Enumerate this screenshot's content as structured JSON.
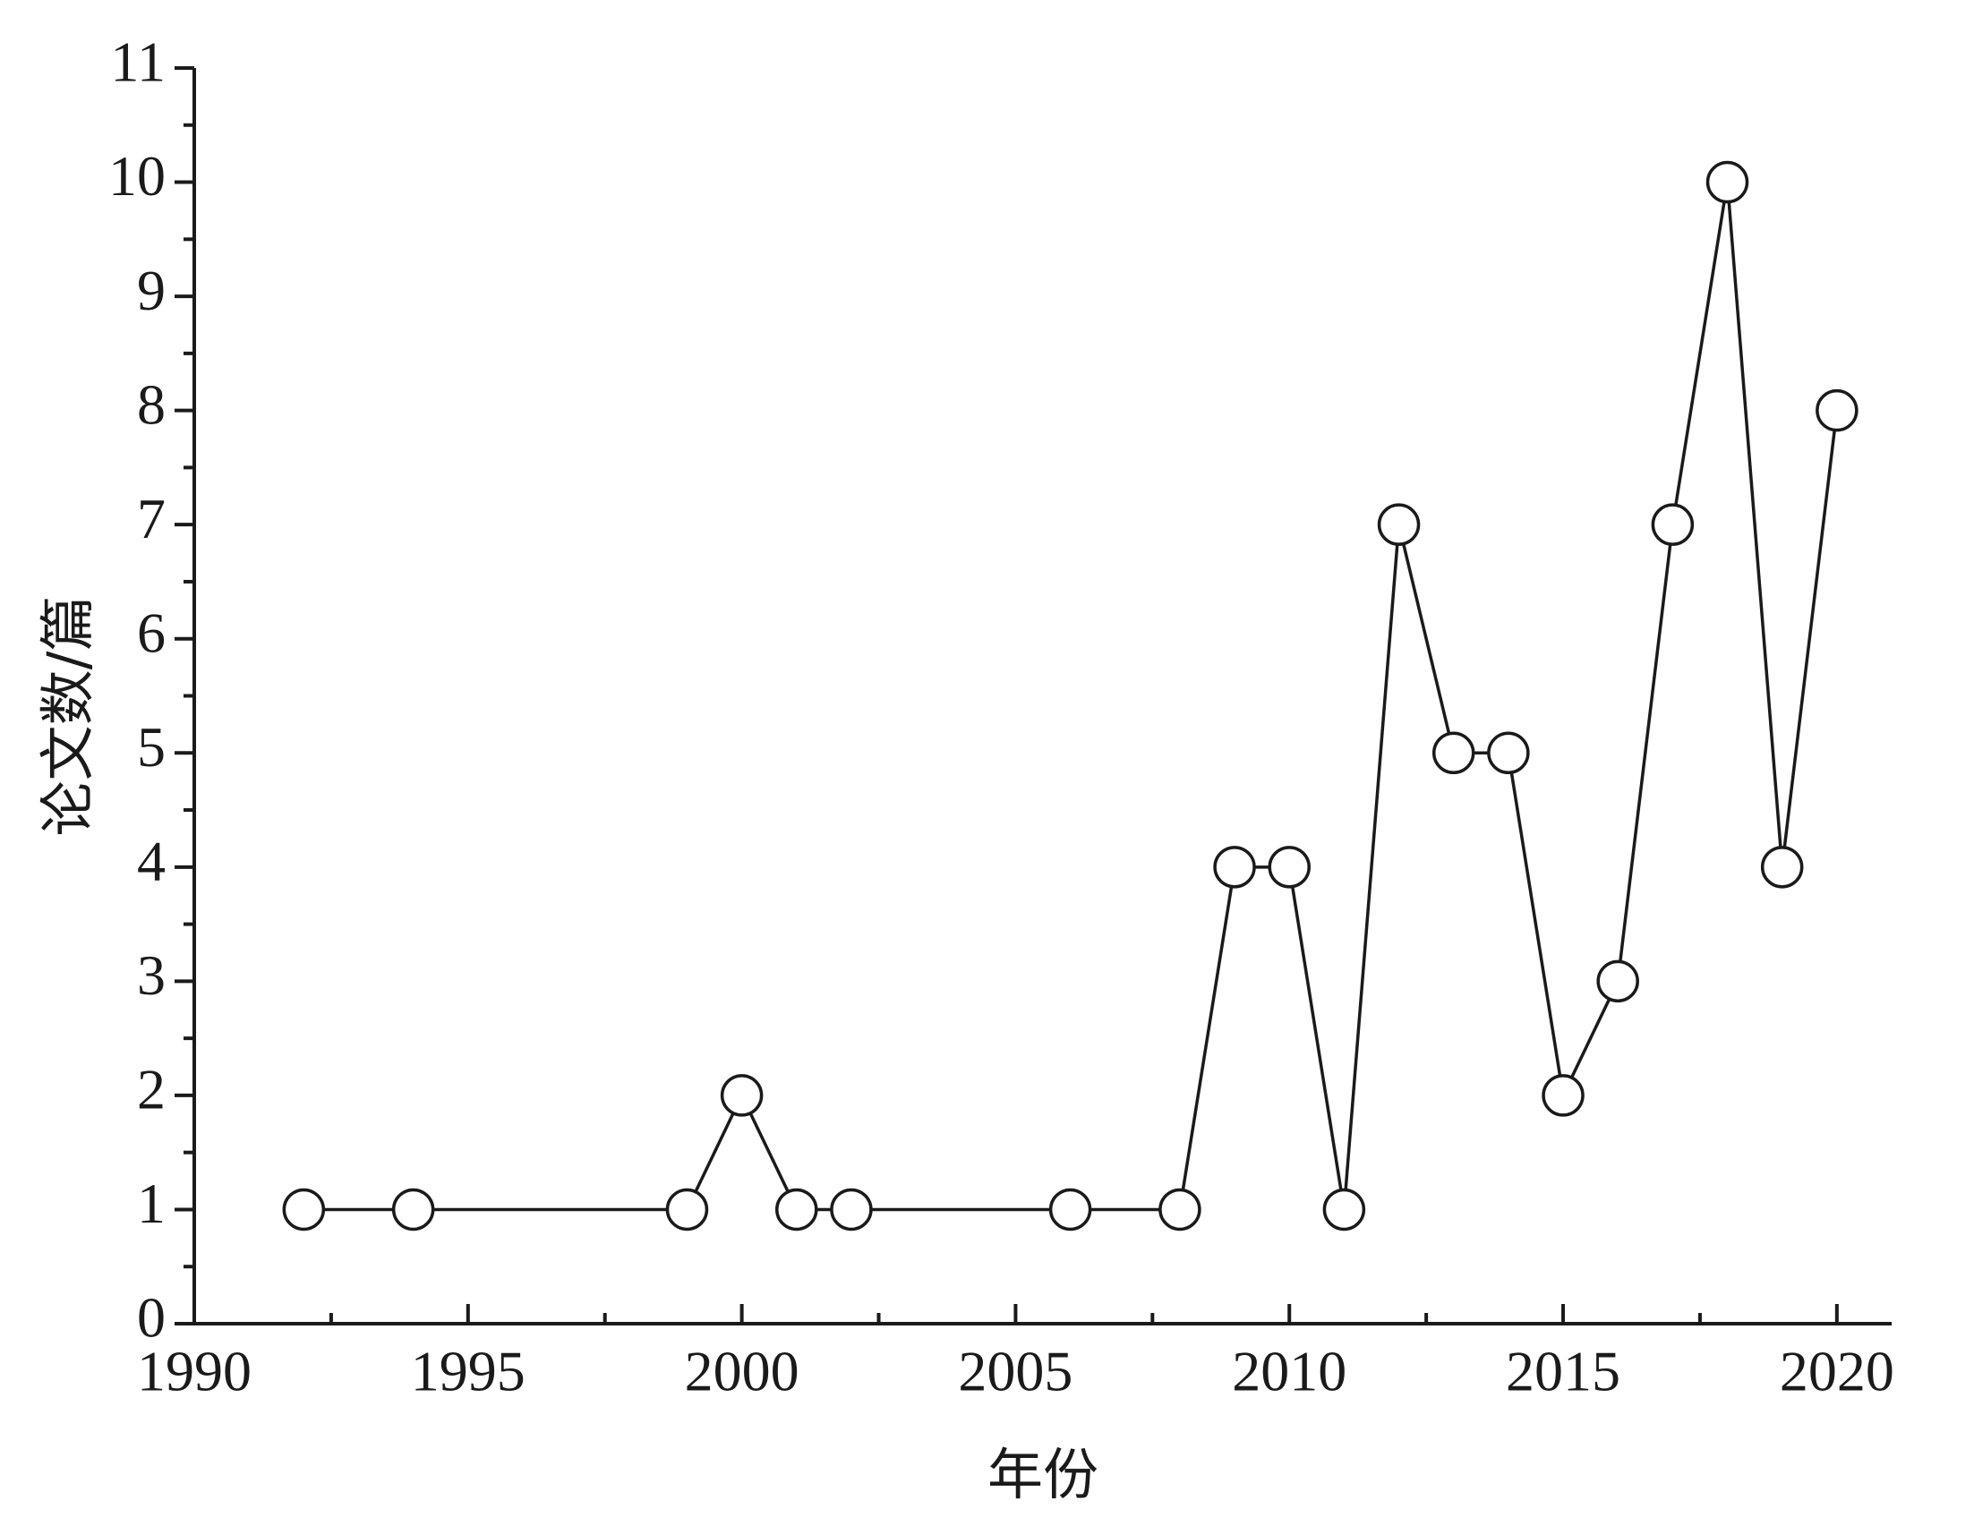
{
  "chart_data": {
    "type": "line",
    "x_label": "年份",
    "y_label": "论文数/篇",
    "x": [
      1992,
      1994,
      1999,
      2000,
      2001,
      2002,
      2006,
      2008,
      2009,
      2010,
      2011,
      2012,
      2013,
      2014,
      2015,
      2016,
      2017,
      2018,
      2019,
      2020
    ],
    "values": [
      1,
      1,
      1,
      2,
      1,
      1,
      1,
      1,
      4,
      4,
      1,
      7,
      5,
      5,
      2,
      3,
      7,
      10,
      4,
      8
    ],
    "color": "#1a1a1a",
    "marker": "open-circle",
    "xlim": [
      1990,
      2021
    ],
    "xticks": [
      1990,
      1995,
      2000,
      2005,
      2010,
      2015,
      2020
    ],
    "ylim": [
      0,
      11
    ],
    "yticks": [
      0,
      1,
      2,
      3,
      4,
      5,
      6,
      7,
      8,
      9,
      10,
      11
    ],
    "minor_ticks": true,
    "grid": false
  }
}
